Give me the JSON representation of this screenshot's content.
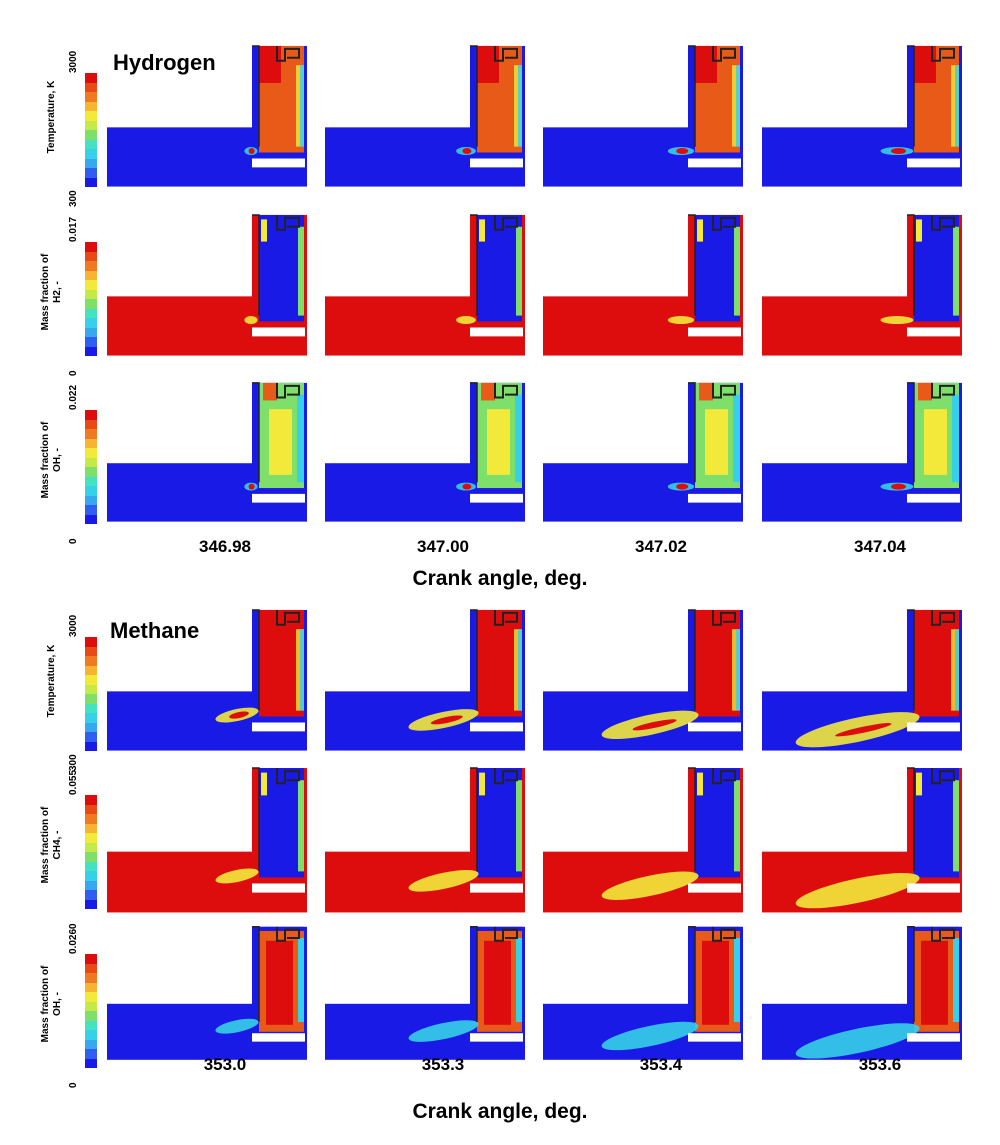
{
  "colors": {
    "low": "#1a1ae6",
    "high": "#dd0d0d",
    "hot": "#e85a17",
    "mid": "#f2e93a",
    "cyan": "#36d0e8",
    "green": "#7ee06a",
    "white": "#ffffff",
    "wall": "#222222"
  },
  "colormap": [
    "#1a1ae6",
    "#2f5ef0",
    "#36a8f0",
    "#36d0e8",
    "#45e2c2",
    "#7ee06a",
    "#c4ea4a",
    "#f2e93a",
    "#f5b530",
    "#f07a22",
    "#e84a16",
    "#dd0d0d"
  ],
  "sections": [
    {
      "title": "Hydrogen",
      "axis_title": "Crank angle, deg.",
      "crank_angles": [
        "346.98",
        "347.00",
        "347.02",
        "347.04"
      ],
      "rows": [
        {
          "label": "Temperature, K",
          "max": "3000",
          "min": "300",
          "kind": "temp"
        },
        {
          "label": "Mass fraction of\nH2, -",
          "max": "0.017",
          "min": "0",
          "kind": "fuel"
        },
        {
          "label": "Mass fraction of\nOH, -",
          "max": "0.022",
          "min": "0",
          "kind": "oh_h2"
        }
      ]
    },
    {
      "title": "Methane",
      "axis_title": "Crank angle, deg.",
      "crank_angles": [
        "353.0",
        "353.3",
        "353.4",
        "353.6"
      ],
      "rows": [
        {
          "label": "Temperature, K",
          "max": "3000",
          "min": "300",
          "kind": "temp_ch4"
        },
        {
          "label": "Mass fraction of\nCH4, -",
          "max": "0.055",
          "min": "0",
          "kind": "fuel_ch4"
        },
        {
          "label": "Mass fraction of\nOH, -",
          "max": "0.026",
          "min": "0",
          "kind": "oh_ch4"
        }
      ]
    }
  ]
}
